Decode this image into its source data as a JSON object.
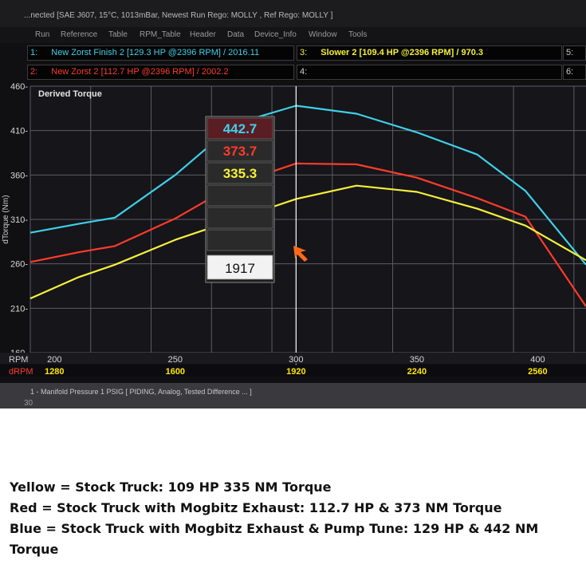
{
  "window": {
    "title": "...nected [SAE J607, 15°C, 1013mBar,  Newest Run Rego: MOLLY ,  Ref Rego: MOLLY ]",
    "menu": [
      "Run",
      "Reference",
      "Table",
      "RPM_Table",
      "Header",
      "Data",
      "Device_Info",
      "Window",
      "Tools"
    ]
  },
  "runs": [
    {
      "slot": "1:",
      "label": "New Zorst Finish 2 [129.3 HP @2396 RPM] / 2016.11",
      "color": "#3fd0e8"
    },
    {
      "slot": "2:",
      "label": "New Zorst 2 [112.7 HP @2396 RPM] / 2002.2",
      "color": "#ff3b2a"
    },
    {
      "slot": "3:",
      "label": "Slower 2 [109.4 HP @2396 RPM] / 970.3",
      "color": "#f5f03a"
    },
    {
      "slot": "4:",
      "label": "",
      "color": "#cccccc"
    },
    {
      "slot": "5:",
      "label": "",
      "color": "#cccccc"
    },
    {
      "slot": "6:",
      "label": "",
      "color": "#cccccc"
    }
  ],
  "cursor_readout": {
    "values": [
      "442.7",
      "373.7",
      "335.3"
    ],
    "rpm": "1917"
  },
  "bottom_panel": {
    "text": "1 - Manifold Pressure 1 PSIG   [ PIDING, Analog, Tested Difference ... ]",
    "tick": "30"
  },
  "colors": {
    "blue_series": "#3fd0e8",
    "red_series": "#ff3b2a",
    "yellow_series": "#f5f03a",
    "plot_bg": "#15151a",
    "grid": "#5c5c66",
    "cursor": "#ffffff",
    "drpm_text": "#ffe600"
  },
  "chart_data": {
    "type": "line",
    "title": "Derived Torque",
    "ylabel": "dTorque (Nm)",
    "xlabel": "RPM",
    "secondary_xlabel": "dRPM",
    "xlim": [
      190,
      420
    ],
    "ylim": [
      160,
      460
    ],
    "grid": true,
    "y_ticks": [
      460,
      410,
      360,
      310,
      260,
      210,
      160
    ],
    "x_ticks": [
      200,
      250,
      300,
      350,
      400
    ],
    "drpm_ticks": [
      "1280",
      "1600",
      "1920",
      "2240",
      "2560"
    ],
    "cursor_x": 300,
    "series": [
      {
        "name": "New Zorst Finish 2",
        "color": "#3fd0e8",
        "x": [
          190,
          210,
          225,
          250,
          275,
          300,
          325,
          350,
          375,
          395,
          420
        ],
        "y": [
          295,
          305,
          312,
          360,
          418,
          438,
          429,
          408,
          383,
          342,
          259
        ]
      },
      {
        "name": "New Zorst 2",
        "color": "#ff3b2a",
        "x": [
          190,
          210,
          225,
          250,
          275,
          300,
          325,
          350,
          375,
          395,
          420
        ],
        "y": [
          262,
          273,
          280,
          311,
          350,
          373,
          372,
          357,
          334,
          313,
          212
        ]
      },
      {
        "name": "Slower 2",
        "color": "#f5f03a",
        "x": [
          190,
          210,
          225,
          250,
          275,
          300,
          325,
          350,
          375,
          395,
          420
        ],
        "y": [
          221,
          245,
          259,
          287,
          310,
          333,
          348,
          341,
          322,
          303,
          264
        ]
      }
    ]
  },
  "caption": [
    "Yellow = Stock Truck: 109 HP 335 NM Torque",
    "Red = Stock Truck with Mogbitz Exhaust: 112.7 HP & 373 NM Torque",
    "Blue = Stock Truck with Mogbitz Exhaust & Pump Tune: 129 HP & 442 NM",
    "Torque"
  ]
}
